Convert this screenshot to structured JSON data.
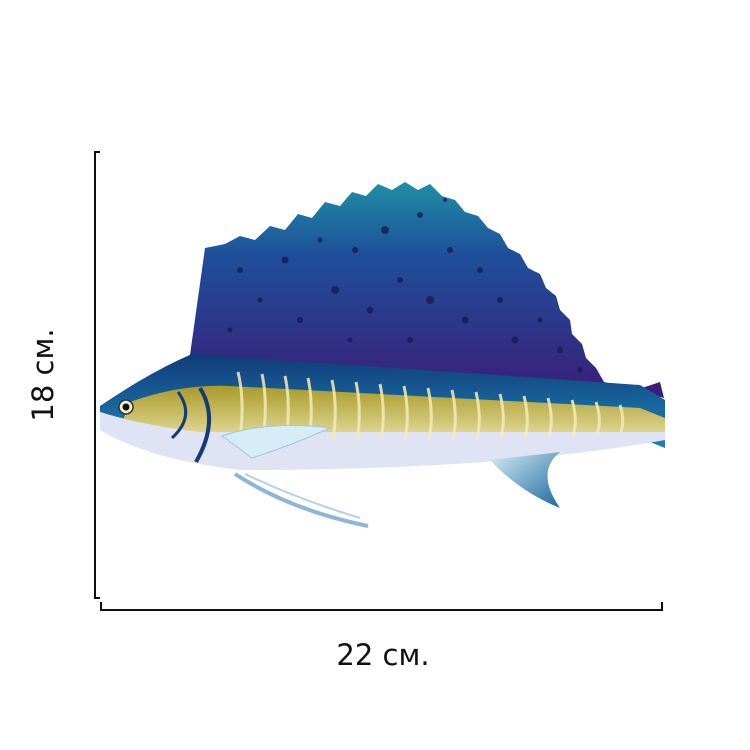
{
  "dimensions": {
    "height": {
      "label": "18 см."
    },
    "width": {
      "label": "22 см."
    }
  }
}
